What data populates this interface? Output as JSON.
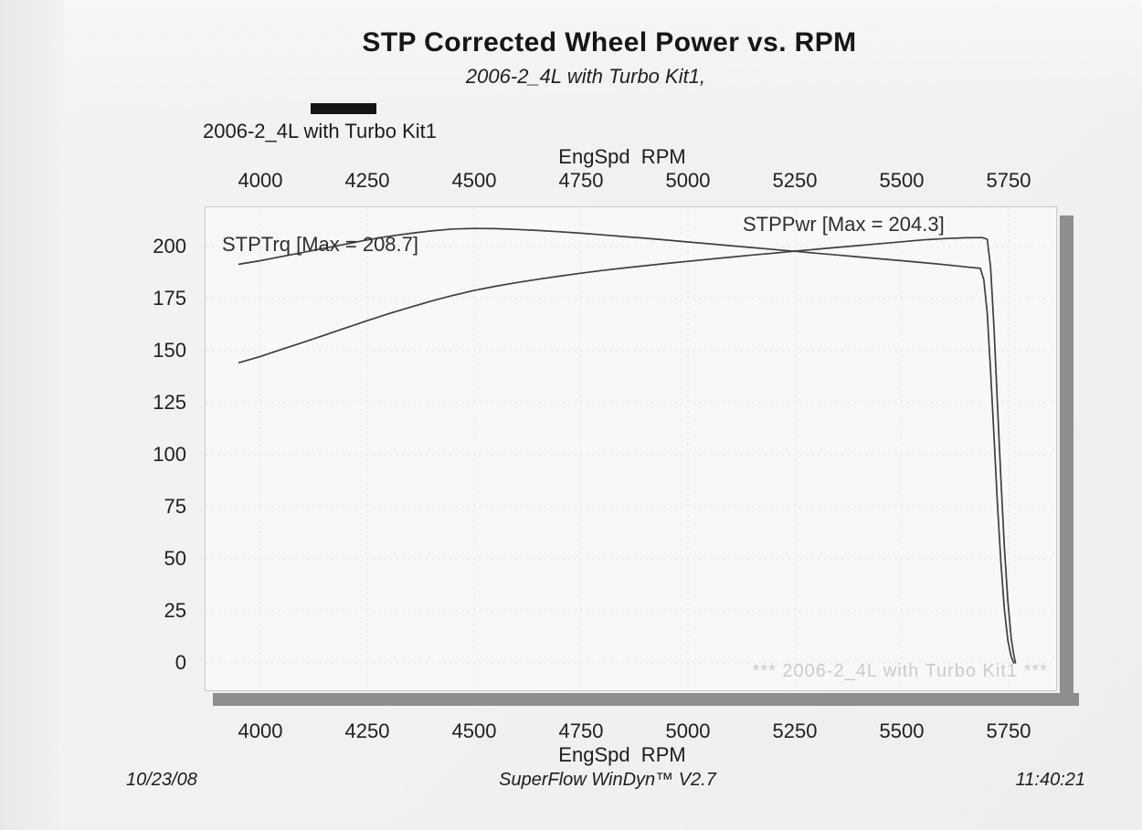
{
  "page": {
    "title": "STP Corrected Wheel Power vs. RPM",
    "subtitle": "2006-2_4L with Turbo Kit1,",
    "legend": {
      "label": "2006-2_4L with Turbo Kit1",
      "swatch_color": "#141414"
    },
    "watermark": "*** 2006-2_4L with Turbo Kit1 ***",
    "footer": {
      "date": "10/23/08",
      "app": "SuperFlow WinDyn™ V2.7",
      "time": "11:40:21"
    }
  },
  "colors": {
    "curve": "#3f3e41",
    "shadow": "#8e8d90",
    "grid_vertical": "#dcdbdf",
    "grid_horizontal": "#e8e7ea",
    "watermark": "#cbcacd"
  },
  "chart_data": {
    "type": "line",
    "title": "STP Corrected Wheel Power vs. RPM",
    "subtitle": "2006-2_4L with Turbo Kit1,",
    "xlabel_top": "EngSpd  RPM",
    "xlabel_bottom": "EngSpd  RPM",
    "ylabel": "",
    "x_ticks": [
      4000,
      4250,
      4500,
      4750,
      5000,
      5250,
      5500,
      5750
    ],
    "y_ticks": [
      200,
      175,
      150,
      125,
      100,
      75,
      50,
      25,
      0
    ],
    "xlim": [
      3865,
      5863
    ],
    "ylim": [
      -13.2,
      219.3
    ],
    "grid": "faint dotted",
    "legend_position": "above-plot-left",
    "series": [
      {
        "name": "STPTrq",
        "label": "STPTrq [Max = 208.7]",
        "max": 208.7,
        "points": [
          [
            3950,
            191.5
          ],
          [
            4000,
            193.2
          ],
          [
            4050,
            195.2
          ],
          [
            4100,
            197.2
          ],
          [
            4150,
            199.2
          ],
          [
            4200,
            201.2
          ],
          [
            4250,
            203.2
          ],
          [
            4300,
            204.9
          ],
          [
            4350,
            206.3
          ],
          [
            4400,
            207.5
          ],
          [
            4450,
            208.4
          ],
          [
            4500,
            208.7
          ],
          [
            4550,
            208.6
          ],
          [
            4600,
            208.2
          ],
          [
            4650,
            207.7
          ],
          [
            4700,
            207.1
          ],
          [
            4750,
            206.4
          ],
          [
            4800,
            205.6
          ],
          [
            4850,
            204.8
          ],
          [
            4900,
            204.0
          ],
          [
            4950,
            203.1
          ],
          [
            5000,
            202.2
          ],
          [
            5050,
            201.3
          ],
          [
            5100,
            200.4
          ],
          [
            5150,
            199.5
          ],
          [
            5200,
            198.6
          ],
          [
            5250,
            197.7
          ],
          [
            5300,
            196.8
          ],
          [
            5350,
            195.9
          ],
          [
            5400,
            195.0
          ],
          [
            5450,
            194.1
          ],
          [
            5500,
            193.2
          ],
          [
            5550,
            192.3
          ],
          [
            5600,
            191.3
          ],
          [
            5650,
            190.2
          ],
          [
            5684,
            189.5
          ],
          [
            5692,
            184.0
          ],
          [
            5700,
            168.0
          ],
          [
            5708,
            140.0
          ],
          [
            5716,
            108.0
          ],
          [
            5724,
            76.0
          ],
          [
            5732,
            48.0
          ],
          [
            5740,
            26.0
          ],
          [
            5748,
            11.0
          ],
          [
            5756,
            3.0
          ],
          [
            5762,
            0.0
          ]
        ]
      },
      {
        "name": "STPPwr",
        "label": "STPPwr [Max = 204.3]",
        "max": 204.3,
        "points": [
          [
            3950,
            144.2
          ],
          [
            4000,
            147.2
          ],
          [
            4050,
            150.6
          ],
          [
            4100,
            154.0
          ],
          [
            4150,
            157.4
          ],
          [
            4200,
            160.9
          ],
          [
            4250,
            164.4
          ],
          [
            4300,
            167.7
          ],
          [
            4350,
            170.8
          ],
          [
            4400,
            173.8
          ],
          [
            4450,
            176.5
          ],
          [
            4500,
            178.9
          ],
          [
            4550,
            180.9
          ],
          [
            4600,
            182.7
          ],
          [
            4650,
            184.3
          ],
          [
            4700,
            185.8
          ],
          [
            4750,
            187.2
          ],
          [
            4800,
            188.5
          ],
          [
            4850,
            189.7
          ],
          [
            4900,
            190.8
          ],
          [
            4950,
            191.9
          ],
          [
            5000,
            192.9
          ],
          [
            5050,
            193.9
          ],
          [
            5100,
            194.9
          ],
          [
            5150,
            195.9
          ],
          [
            5200,
            196.8
          ],
          [
            5250,
            197.8
          ],
          [
            5300,
            198.7
          ],
          [
            5350,
            199.6
          ],
          [
            5400,
            200.5
          ],
          [
            5450,
            201.4
          ],
          [
            5500,
            202.3
          ],
          [
            5550,
            203.2
          ],
          [
            5600,
            203.8
          ],
          [
            5650,
            204.2
          ],
          [
            5688,
            204.3
          ],
          [
            5700,
            203.5
          ],
          [
            5708,
            190.0
          ],
          [
            5716,
            160.0
          ],
          [
            5724,
            124.0
          ],
          [
            5732,
            88.0
          ],
          [
            5740,
            56.0
          ],
          [
            5748,
            30.0
          ],
          [
            5756,
            12.0
          ],
          [
            5762,
            4.0
          ],
          [
            5766,
            0.0
          ]
        ]
      }
    ]
  }
}
